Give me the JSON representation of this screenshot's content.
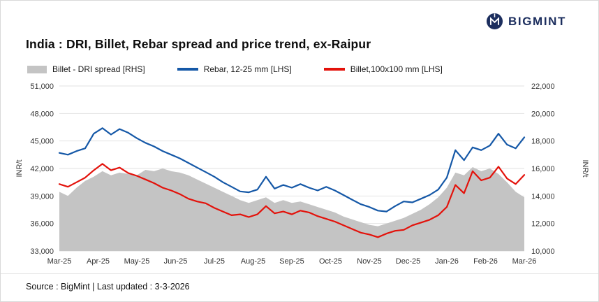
{
  "header": {
    "brand": "BIGMINT",
    "title": "India : DRI, Billet, Rebar spread and price trend, ex-Raipur"
  },
  "legend": [
    {
      "label": "Billet - DRI spread  [RHS]",
      "swatch": "area",
      "color": "#c4c4c4"
    },
    {
      "label": "Rebar, 12-25 mm [LHS]",
      "swatch": "line",
      "color": "#1558a7"
    },
    {
      "label": "Billet,100x100 mm [LHS]",
      "swatch": "line",
      "color": "#e3120b"
    }
  ],
  "footer": {
    "source": "Source : BigMint | Last updated : 3-3-2026"
  },
  "chart_data": {
    "type": "line+area",
    "title": "India : DRI, Billet, Rebar spread and price trend, ex-Raipur",
    "x_labels": [
      "Mar-25",
      "Apr-25",
      "May-25",
      "Jun-25",
      "Jul-25",
      "Aug-25",
      "Sep-25",
      "Oct-25",
      "Nov-25",
      "Dec-25",
      "Jan-26",
      "Feb-26",
      "Mar-26"
    ],
    "y_left": {
      "label": "INR/t",
      "min": 33000,
      "max": 51000,
      "ticks": [
        51000,
        48000,
        45000,
        42000,
        39000,
        36000,
        33000
      ]
    },
    "y_right": {
      "label": "INR/t",
      "min": 10000,
      "max": 22000,
      "ticks": [
        22000,
        20000,
        18000,
        16000,
        14000,
        12000,
        10000
      ]
    },
    "grid": true,
    "legend_position": "top",
    "series": [
      {
        "id": "spread",
        "name": "Billet - DRI spread",
        "axis": "right",
        "type": "area",
        "color": "#c4c4c4",
        "values": [
          14300,
          14000,
          14600,
          15100,
          15400,
          15800,
          15500,
          15700,
          15600,
          15500,
          15900,
          15800,
          16000,
          15800,
          15700,
          15500,
          15200,
          14900,
          14600,
          14300,
          14000,
          13700,
          13500,
          13700,
          13900,
          13500,
          13700,
          13500,
          13600,
          13400,
          13200,
          13000,
          12800,
          12500,
          12300,
          12100,
          11900,
          11800,
          12000,
          12200,
          12400,
          12700,
          13000,
          13400,
          13900,
          14600,
          15700,
          15500,
          16100,
          15800,
          16000,
          15600,
          15000,
          14300,
          13900
        ]
      },
      {
        "id": "rebar",
        "name": "Rebar, 12-25 mm",
        "axis": "left",
        "type": "line",
        "color": "#1558a7",
        "values": [
          43700,
          43500,
          43900,
          44200,
          45800,
          46400,
          45700,
          46300,
          45900,
          45300,
          44800,
          44400,
          43900,
          43500,
          43100,
          42600,
          42100,
          41600,
          41100,
          40500,
          40000,
          39500,
          39400,
          39700,
          41100,
          39800,
          40200,
          39900,
          40300,
          39900,
          39600,
          40000,
          39600,
          39100,
          38600,
          38100,
          37800,
          37400,
          37300,
          37900,
          38400,
          38300,
          38700,
          39100,
          39700,
          41000,
          44000,
          42900,
          44300,
          44000,
          44500,
          45800,
          44600,
          44200,
          45400
        ]
      },
      {
        "id": "billet",
        "name": "Billet,100x100 mm",
        "axis": "left",
        "type": "line",
        "color": "#e3120b",
        "values": [
          40300,
          40000,
          40500,
          41000,
          41800,
          42500,
          41800,
          42100,
          41500,
          41200,
          40800,
          40400,
          39900,
          39600,
          39200,
          38700,
          38400,
          38200,
          37700,
          37300,
          36900,
          37000,
          36700,
          37000,
          37900,
          37100,
          37300,
          37000,
          37400,
          37200,
          36800,
          36500,
          36200,
          35800,
          35400,
          35000,
          34800,
          34500,
          34900,
          35200,
          35300,
          35800,
          36100,
          36400,
          36900,
          37800,
          40200,
          39300,
          41700,
          40700,
          41000,
          42200,
          40900,
          40300,
          41300
        ]
      }
    ]
  }
}
